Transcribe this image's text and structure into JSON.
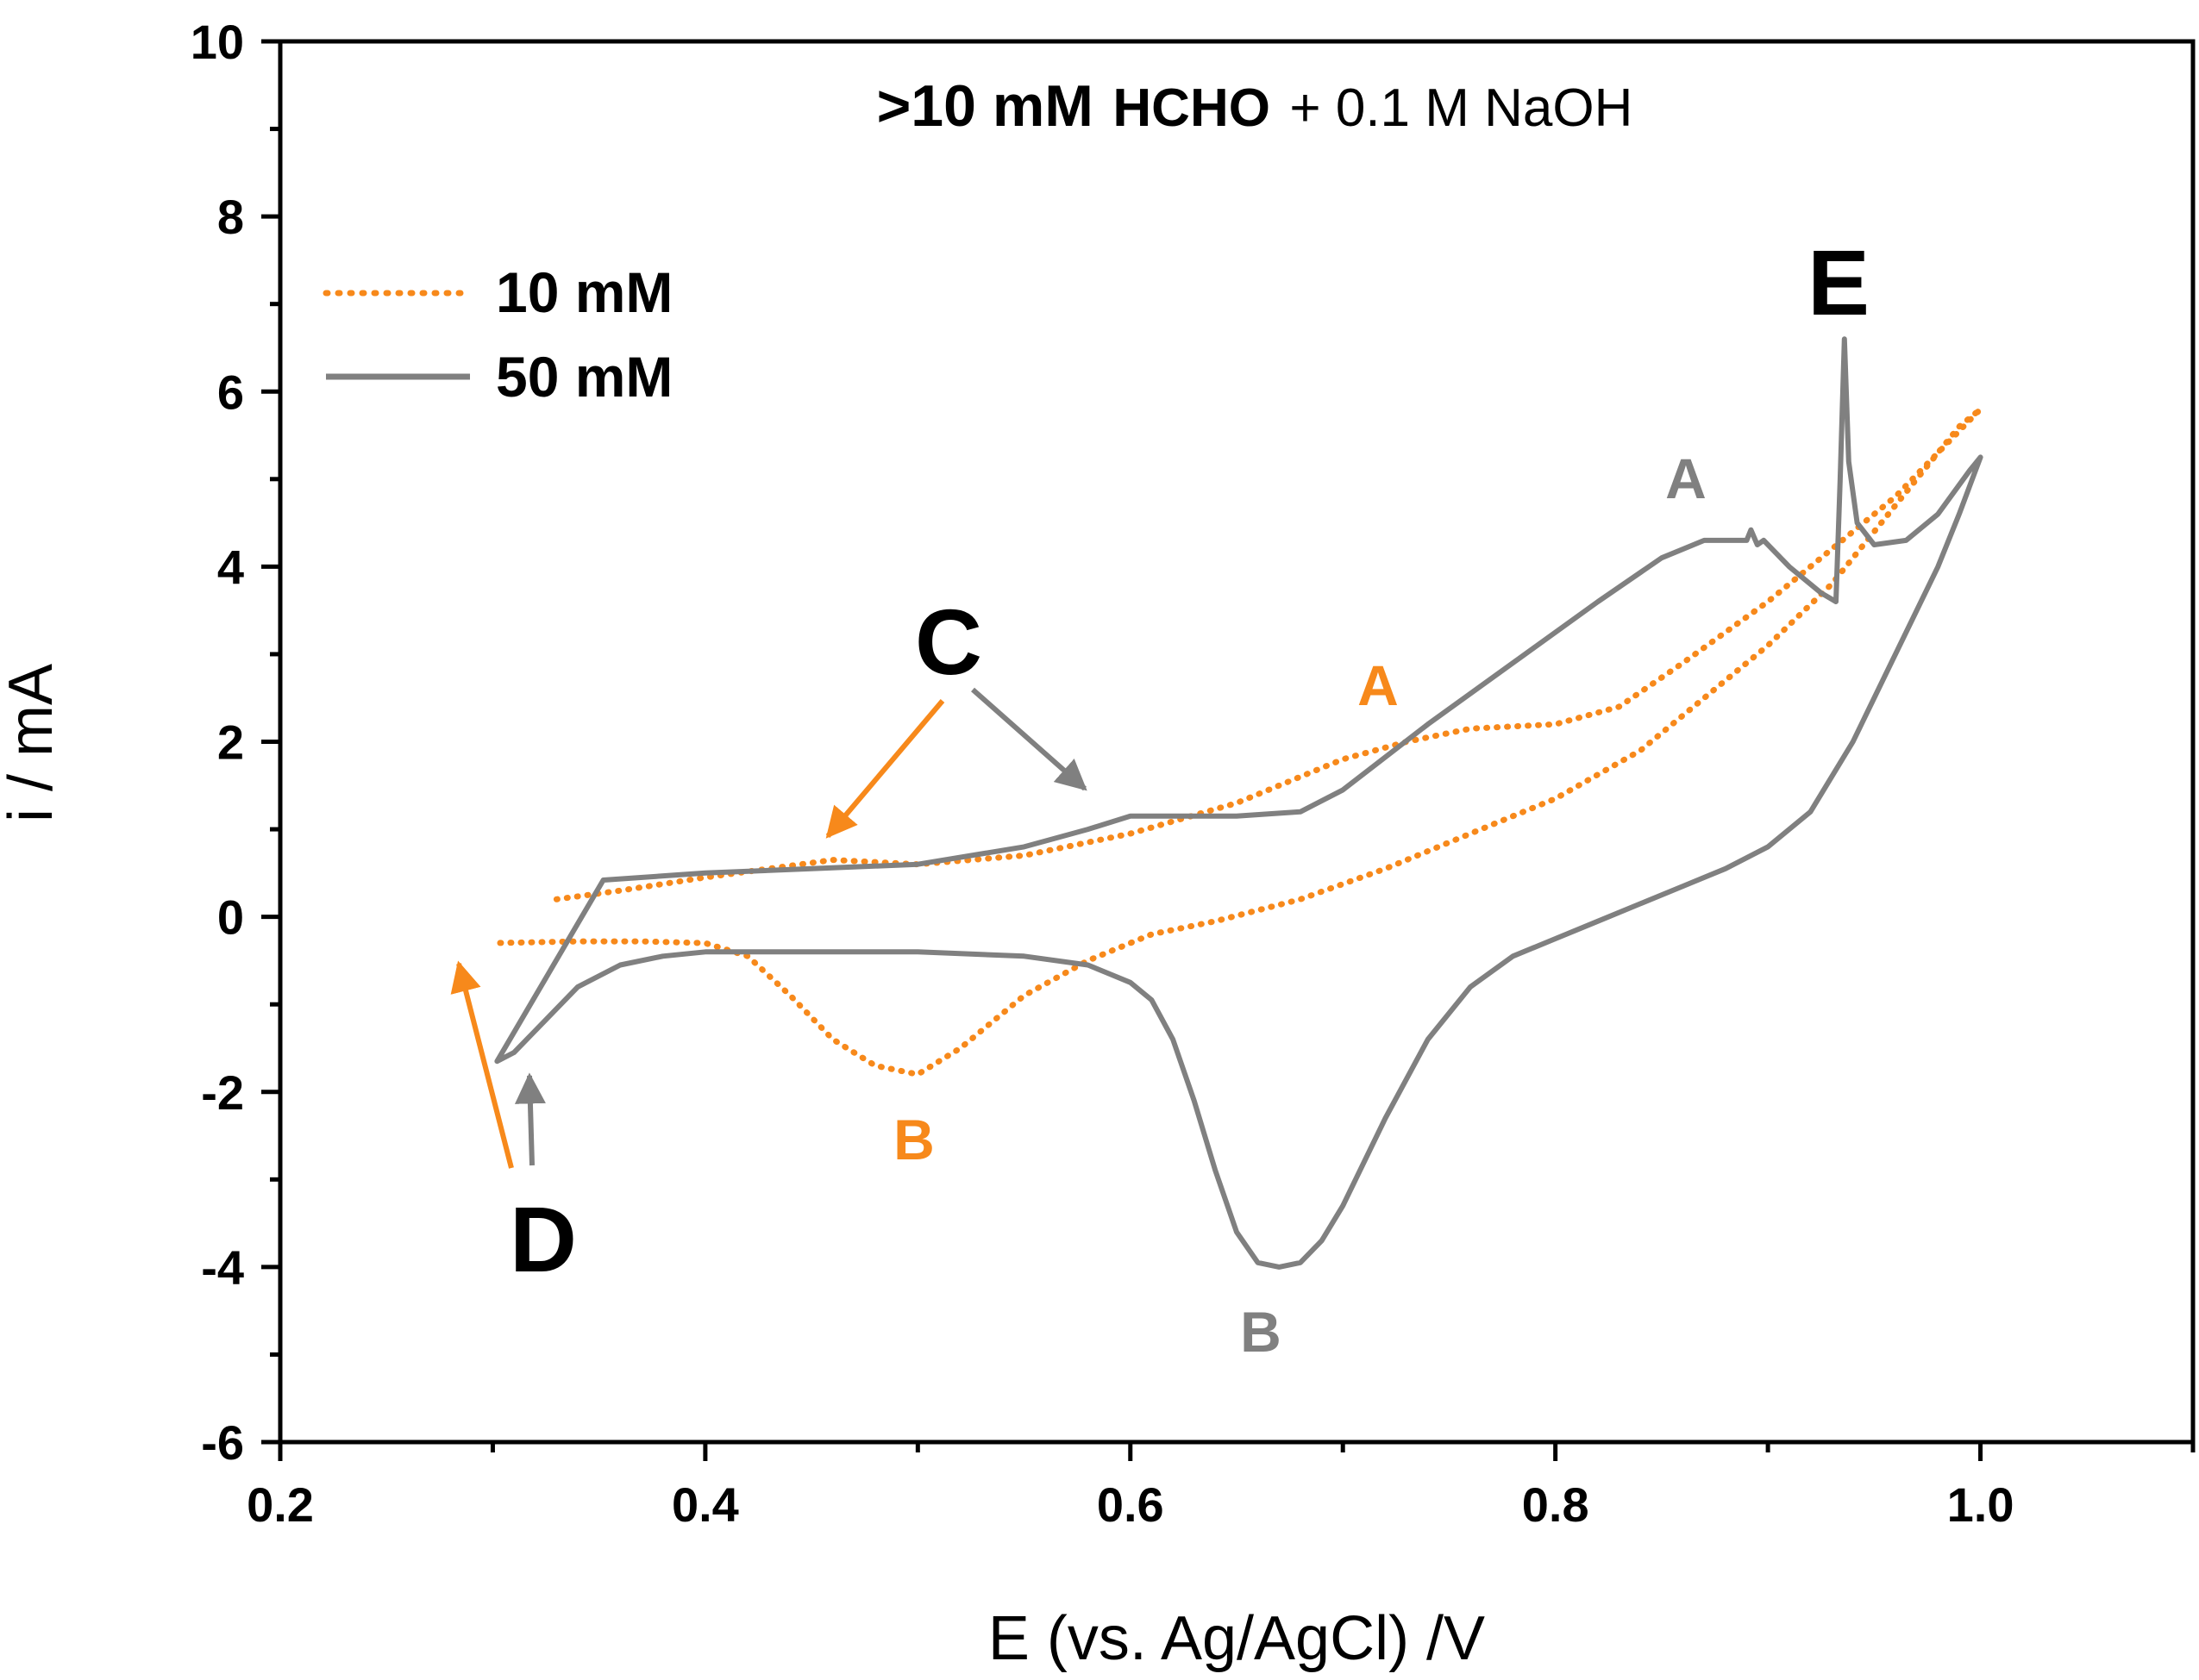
{
  "chart_data": {
    "type": "line",
    "title": {
      "part1": ">10 mM",
      "part2": "HCHO",
      "part3": "+ 0.1 M NaOH"
    },
    "xlabel": "E (vs. Ag/AgCl) /V",
    "ylabel": "i / mA",
    "xlim": [
      0.2,
      1.1
    ],
    "ylim": [
      -6,
      10
    ],
    "x_ticks": [
      "0.2",
      "0.4",
      "0.6",
      "0.8",
      "1.0"
    ],
    "y_ticks": [
      "10",
      "8",
      "6",
      "4",
      "2",
      "0",
      "-2",
      "-4",
      "-6"
    ],
    "legend_position": "top-left",
    "colors": {
      "orange": "#f7891b",
      "gray": "#808080",
      "black": "#000000"
    },
    "series": [
      {
        "name": "10 mM",
        "style": "dotted",
        "color": "#f7891b",
        "x": [
          0.33,
          0.36,
          0.4,
          0.43,
          0.46,
          0.5,
          0.55,
          0.6,
          0.65,
          0.7,
          0.73,
          0.76,
          0.8,
          0.83,
          0.86,
          0.9,
          0.93,
          0.96,
          0.98,
          1.0,
          0.99,
          0.97,
          0.95,
          0.93,
          0.9,
          0.87,
          0.84,
          0.8,
          0.76,
          0.72,
          0.68,
          0.64,
          0.61,
          0.58,
          0.55,
          0.52,
          0.5,
          0.48,
          0.46,
          0.44,
          0.42,
          0.4,
          0.37,
          0.34,
          0.3
        ],
        "y": [
          0.2,
          0.3,
          0.45,
          0.55,
          0.65,
          0.6,
          0.7,
          0.95,
          1.3,
          1.8,
          2.0,
          2.15,
          2.2,
          2.4,
          2.9,
          3.6,
          4.2,
          4.8,
          5.3,
          5.8,
          5.6,
          5.0,
          4.4,
          3.8,
          3.1,
          2.5,
          1.9,
          1.35,
          0.95,
          0.55,
          0.2,
          -0.05,
          -0.2,
          -0.5,
          -0.9,
          -1.5,
          -1.8,
          -1.7,
          -1.4,
          -0.9,
          -0.45,
          -0.3,
          -0.28,
          -0.28,
          -0.3
        ]
      },
      {
        "name": "50 mM",
        "style": "solid",
        "color": "#808080",
        "x": [
          0.352,
          0.4,
          0.45,
          0.5,
          0.55,
          0.58,
          0.6,
          0.62,
          0.65,
          0.68,
          0.7,
          0.74,
          0.78,
          0.82,
          0.85,
          0.87,
          0.89,
          0.892,
          0.895,
          0.898,
          0.91,
          0.925,
          0.932,
          0.934,
          0.936,
          0.938,
          0.942,
          0.95,
          0.965,
          0.98,
          0.995,
          1.0,
          0.99,
          0.98,
          0.96,
          0.94,
          0.92,
          0.9,
          0.88,
          0.86,
          0.84,
          0.82,
          0.8,
          0.78,
          0.76,
          0.74,
          0.72,
          0.7,
          0.69,
          0.68,
          0.67,
          0.66,
          0.65,
          0.64,
          0.63,
          0.62,
          0.61,
          0.6,
          0.59,
          0.58,
          0.55,
          0.5,
          0.45,
          0.4,
          0.38,
          0.36,
          0.34,
          0.32,
          0.31,
          0.302,
          0.352
        ],
        "y": [
          0.42,
          0.5,
          0.55,
          0.6,
          0.8,
          1.0,
          1.15,
          1.15,
          1.15,
          1.2,
          1.45,
          2.2,
          2.9,
          3.6,
          4.1,
          4.3,
          4.3,
          4.42,
          4.25,
          4.3,
          4.0,
          3.7,
          3.6,
          5.0,
          6.6,
          5.2,
          4.5,
          4.25,
          4.3,
          4.6,
          5.1,
          5.25,
          4.6,
          4.0,
          3.0,
          2.0,
          1.2,
          0.8,
          0.55,
          0.35,
          0.15,
          -0.05,
          -0.25,
          -0.45,
          -0.8,
          -1.4,
          -2.3,
          -3.3,
          -3.7,
          -3.95,
          -4.0,
          -3.95,
          -3.6,
          -2.9,
          -2.1,
          -1.4,
          -0.95,
          -0.75,
          -0.65,
          -0.55,
          -0.45,
          -0.4,
          -0.4,
          -0.4,
          -0.45,
          -0.55,
          -0.8,
          -1.3,
          -1.55,
          -1.65,
          0.42
        ]
      }
    ],
    "annotations": {
      "C": "C",
      "D": "D",
      "E": "E",
      "A_10mM": "A",
      "A_50mM": "A",
      "B_10mM": "B",
      "B_50mM": "B"
    }
  }
}
